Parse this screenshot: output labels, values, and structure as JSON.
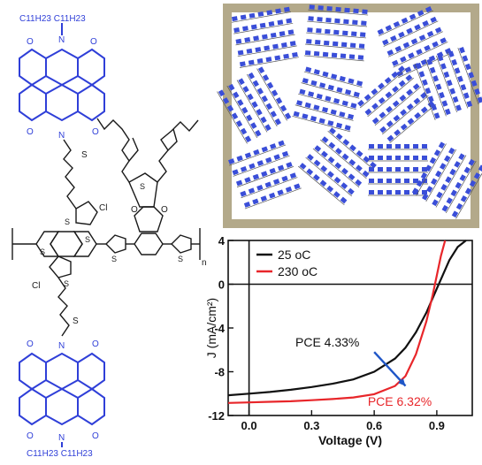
{
  "molecule": {
    "top_substituent": "C11H23 C11H23",
    "bottom_substituent": "C11H23 C11H23",
    "sulfur_label": "S",
    "thiophene_label": "S",
    "carbonyl_label": "O",
    "imide_n_label": "N",
    "chlorine_label": "Cl",
    "repeat_n": "n",
    "colors": {
      "pdi": "#2f3fd8",
      "backbone": "#1a1a1a"
    }
  },
  "morphology_panel": {
    "frame_color": "#b3a98a",
    "domain_color": "#3a4ed8"
  },
  "chart_data": {
    "type": "line",
    "title": "",
    "xlabel": "Voltage (V)",
    "ylabel": "J (mA/cm²)",
    "xlim": [
      -0.1,
      1.07
    ],
    "ylim": [
      -12,
      4
    ],
    "xticks": [
      0.0,
      0.3,
      0.6,
      0.9
    ],
    "xtick_labels": [
      "0.0",
      "0.3",
      "0.6",
      "0.9"
    ],
    "yticks": [
      -12,
      -8,
      -4,
      0,
      4
    ],
    "ytick_labels": [
      "-12",
      "-8",
      "-4",
      "0",
      "4"
    ],
    "legend_position": "top-left",
    "series": [
      {
        "name": "25 oC",
        "color": "#111111",
        "x": [
          -0.1,
          0.0,
          0.1,
          0.2,
          0.3,
          0.4,
          0.5,
          0.6,
          0.7,
          0.75,
          0.8,
          0.85,
          0.9,
          0.93,
          0.96,
          1.0,
          1.04
        ],
        "y": [
          -10.15,
          -10.0,
          -9.85,
          -9.65,
          -9.4,
          -9.1,
          -8.7,
          -8.0,
          -6.8,
          -5.8,
          -4.4,
          -2.6,
          -0.4,
          0.9,
          2.2,
          3.4,
          4.0
        ]
      },
      {
        "name": "230 oC",
        "color": "#e8262a",
        "x": [
          -0.1,
          0.0,
          0.1,
          0.2,
          0.3,
          0.4,
          0.5,
          0.6,
          0.7,
          0.75,
          0.8,
          0.85,
          0.88,
          0.9,
          0.92,
          0.94
        ],
        "y": [
          -10.85,
          -10.8,
          -10.75,
          -10.7,
          -10.6,
          -10.5,
          -10.35,
          -10.05,
          -9.3,
          -8.4,
          -6.4,
          -3.4,
          -1.0,
          0.8,
          2.6,
          4.0
        ]
      }
    ],
    "annotations": [
      {
        "text": "PCE 4.33%",
        "color": "#111111"
      },
      {
        "text": "PCE 6.32%",
        "color": "#e8262a"
      }
    ],
    "arrow": {
      "from": [
        0.6,
        -6.2
      ],
      "to": [
        0.75,
        -9.3
      ],
      "color": "#1f56c7"
    },
    "grid": false
  }
}
